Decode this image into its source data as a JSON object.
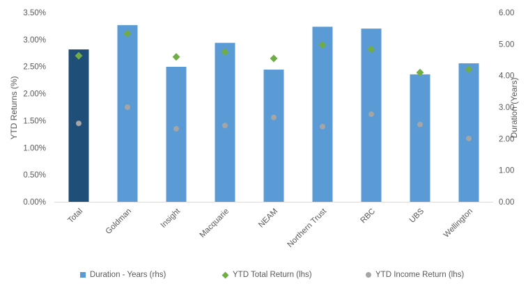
{
  "chart_data": {
    "type": "bar",
    "categories": [
      "Total",
      "Goldman",
      "Insight",
      "Macquarie",
      "NEAM",
      "Northern Trust",
      "RBC",
      "UBS",
      "Wellington"
    ],
    "series": [
      {
        "name": "Duration - Years (rhs)",
        "type": "bar",
        "axis": "right",
        "values": [
          4.83,
          5.6,
          4.28,
          5.04,
          4.19,
          5.55,
          5.49,
          4.04,
          4.39
        ]
      },
      {
        "name": "YTD Total Return (lhs)",
        "type": "scatter",
        "marker": "diamond",
        "axis": "left",
        "values": [
          2.7,
          3.11,
          2.68,
          2.77,
          2.65,
          2.9,
          2.82,
          2.39,
          2.45
        ]
      },
      {
        "name": "YTD Income Return (lhs)",
        "type": "scatter",
        "marker": "circle",
        "axis": "left",
        "values": [
          1.45,
          1.75,
          1.35,
          1.41,
          1.56,
          1.39,
          1.62,
          1.43,
          1.17
        ]
      }
    ],
    "highlight_category": "Total",
    "ylabel_left": "YTD Returns (%)",
    "ylabel_right": "Duration (Years)",
    "ylim_left": [
      0,
      3.5
    ],
    "ylim_right": [
      0,
      6
    ],
    "yticks_left": [
      "0.00%",
      "0.50%",
      "1.00%",
      "1.50%",
      "2.00%",
      "2.50%",
      "3.00%",
      "3.50%"
    ],
    "yticks_right": [
      "0.00",
      "1.00",
      "2.00",
      "3.00",
      "4.00",
      "5.00",
      "6.00"
    ],
    "grid": false,
    "legend_position": "bottom",
    "colors": {
      "bar": "#5B9BD5",
      "bar_highlight": "#1F4E79",
      "total_return": "#70AD47",
      "income_return": "#A5A5A5",
      "axis": "#D9D9D9",
      "text": "#595959"
    }
  }
}
